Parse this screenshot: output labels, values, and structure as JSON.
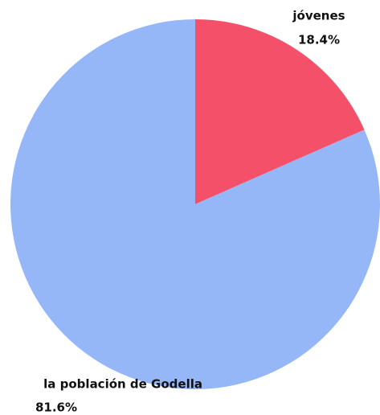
{
  "chart_data": {
    "type": "pie",
    "categories": [
      "jóvenes",
      "la población de Godella"
    ],
    "values": [
      18.4,
      81.6
    ],
    "value_labels": [
      "18.4%",
      "81.6%"
    ],
    "colors": [
      "#f5506a",
      "#95b6f7"
    ]
  }
}
